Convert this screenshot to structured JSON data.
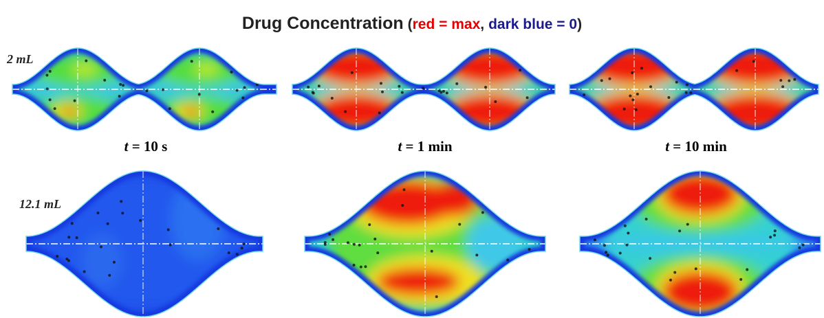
{
  "title": "Drug Concentration",
  "legend": {
    "open": "(",
    "max_label": "red = max",
    "separator": ",",
    "zero_label": "dark blue = 0",
    "close": ")"
  },
  "rows": [
    {
      "label": "2 mL"
    },
    {
      "label": "12.1 mL"
    }
  ],
  "time_variable": "t",
  "columns": [
    {
      "label": "= 10 s"
    },
    {
      "label": "= 1 min"
    },
    {
      "label": "= 10 min"
    }
  ]
}
